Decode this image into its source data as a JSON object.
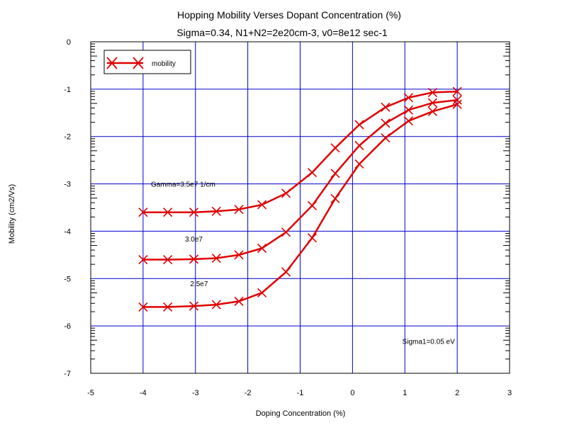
{
  "chart_data": {
    "type": "line",
    "title": "Hopping Mobility Verses Dopant Concentration (%)",
    "subtitle": "Sigma=0.34, N1+N2=2e20cm-3, v0=8e12 sec-1",
    "xlabel": "Doping Concentration (%)",
    "ylabel": "Mobility (cm2/Vs)",
    "xlim": [
      -5,
      3
    ],
    "ylim": [
      -7,
      0
    ],
    "x_ticks": [
      "-5",
      "-4",
      "-3",
      "-2",
      "-1",
      "0",
      "1",
      "2",
      "3"
    ],
    "y_ticks": [
      "0",
      "-1",
      "-2",
      "-3",
      "-4",
      "-5",
      "-6",
      "-7"
    ],
    "grid": true,
    "legend_position": "top-left",
    "legend": [
      "mobility"
    ],
    "series_color": "#e00000",
    "grid_color": "#0000cc",
    "series": [
      {
        "x": [
          -4.0,
          -3.53,
          -3.03,
          -2.6,
          -2.17,
          -1.73,
          -1.27,
          -0.77,
          -0.33,
          0.13,
          0.63,
          1.07,
          1.53,
          2.0
        ],
        "y": [
          -3.6,
          -3.6,
          -3.6,
          -3.58,
          -3.54,
          -3.44,
          -3.2,
          -2.76,
          -2.24,
          -1.75,
          -1.38,
          -1.18,
          -1.07,
          -1.05
        ]
      },
      {
        "x": [
          -4.0,
          -3.53,
          -3.03,
          -2.6,
          -2.17,
          -1.73,
          -1.27,
          -0.77,
          -0.33,
          0.13,
          0.63,
          1.07,
          1.53,
          2.0
        ],
        "y": [
          -4.6,
          -4.6,
          -4.59,
          -4.57,
          -4.5,
          -4.36,
          -4.02,
          -3.46,
          -2.78,
          -2.19,
          -1.72,
          -1.44,
          -1.29,
          -1.23
        ]
      },
      {
        "x": [
          -4.0,
          -3.53,
          -3.03,
          -2.6,
          -2.17,
          -1.73,
          -1.27,
          -0.77,
          -0.33,
          0.13,
          0.63,
          1.07,
          1.53,
          2.0
        ],
        "y": [
          -5.6,
          -5.6,
          -5.58,
          -5.55,
          -5.48,
          -5.3,
          -4.86,
          -4.14,
          -3.31,
          -2.58,
          -2.03,
          -1.67,
          -1.47,
          -1.32
        ]
      }
    ],
    "annotations": [
      {
        "text": "Gamma=3.5e7 1/cm",
        "x": -3.85,
        "y": -3.06
      },
      {
        "text": "3.0e7",
        "x": -3.2,
        "y": -4.22
      },
      {
        "text": "2.5e7",
        "x": -3.1,
        "y": -5.16
      },
      {
        "text": "Sigma1=0.05 eV",
        "x": 0.95,
        "y": -6.38
      }
    ]
  }
}
